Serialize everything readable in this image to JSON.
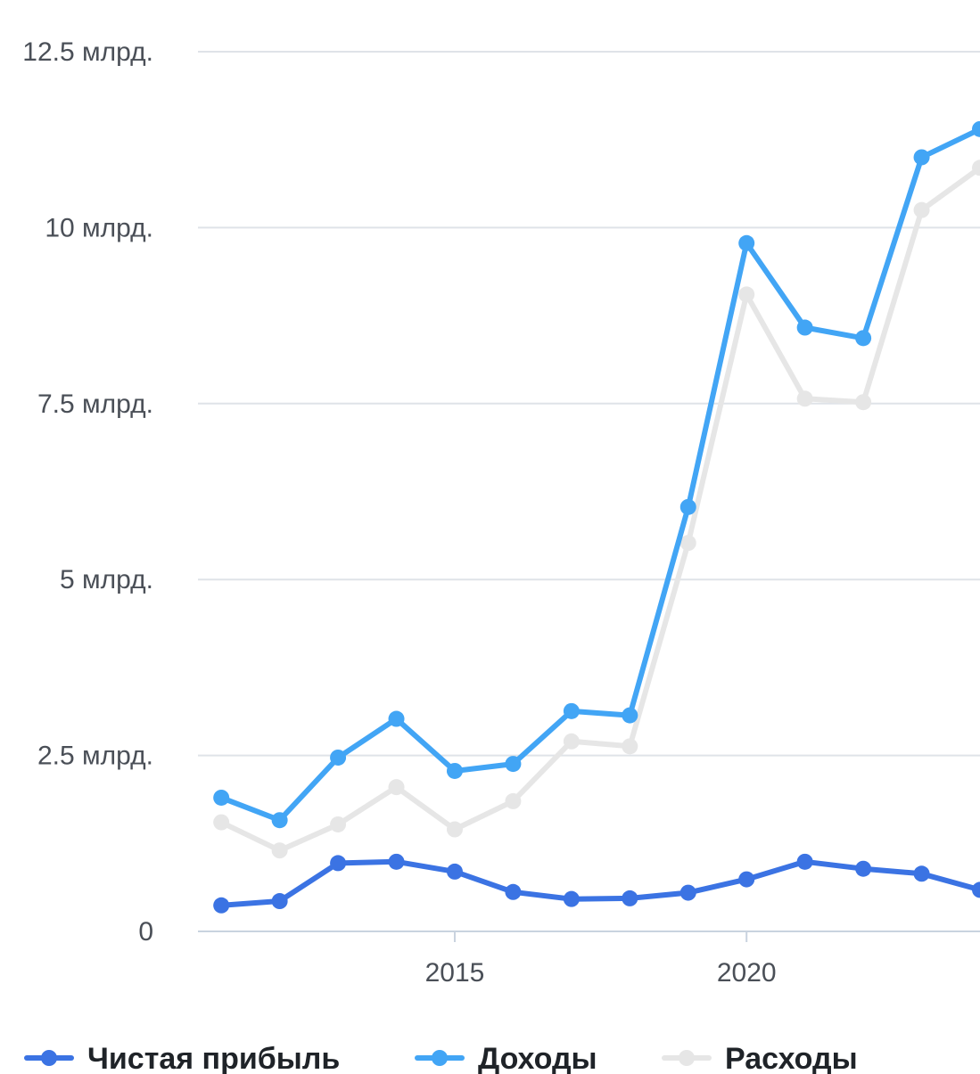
{
  "chart_data": {
    "type": "line",
    "x": [
      2011,
      2012,
      2013,
      2014,
      2015,
      2016,
      2017,
      2018,
      2019,
      2020,
      2021,
      2022,
      2023,
      2024
    ],
    "xlim": [
      2010.6,
      2024.0
    ],
    "ylim": [
      0,
      12.5
    ],
    "x_ticks": [
      {
        "value": 2015,
        "label": "2015"
      },
      {
        "value": 2020,
        "label": "2020"
      }
    ],
    "y_ticks": [
      {
        "value": 0,
        "label": "0"
      },
      {
        "value": 2.5,
        "label": "2.5 млрд."
      },
      {
        "value": 5,
        "label": "5 млрд."
      },
      {
        "value": 7.5,
        "label": "7.5 млрд."
      },
      {
        "value": 10,
        "label": "10 млрд."
      },
      {
        "value": 12.5,
        "label": "12.5 млрд."
      }
    ],
    "grid": true,
    "legend_position": "bottom",
    "series": [
      {
        "name": "Расходы",
        "color": "#e6e6e6",
        "values": [
          1.55,
          1.15,
          1.52,
          2.05,
          1.45,
          1.85,
          2.7,
          2.63,
          5.52,
          9.05,
          7.57,
          7.52,
          10.25,
          10.85
        ]
      },
      {
        "name": "Доходы",
        "color": "#42a5f5",
        "values": [
          1.9,
          1.58,
          2.47,
          3.02,
          2.28,
          2.38,
          3.13,
          3.07,
          6.03,
          9.78,
          8.58,
          8.43,
          11.0,
          11.4
        ]
      },
      {
        "name": "Чистая прибыль",
        "color": "#3b73e3",
        "values": [
          0.37,
          0.43,
          0.97,
          0.99,
          0.85,
          0.56,
          0.46,
          0.47,
          0.55,
          0.74,
          0.99,
          0.89,
          0.82,
          0.59
        ]
      }
    ],
    "legend": [
      {
        "name": "Чистая прибыль",
        "color": "#3b73e3"
      },
      {
        "name": "Доходы",
        "color": "#42a5f5"
      },
      {
        "name": "Расходы",
        "color": "#e6e6e6"
      }
    ]
  }
}
